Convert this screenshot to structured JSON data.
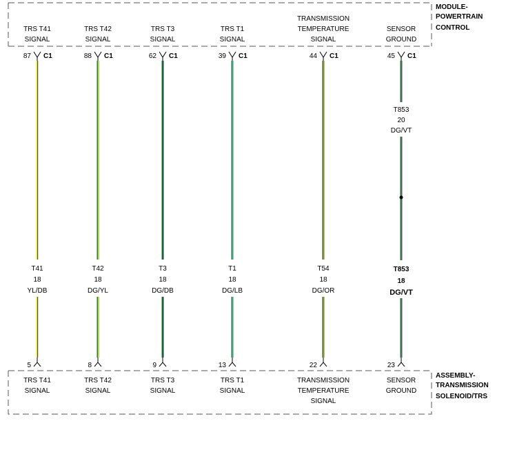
{
  "top_module": {
    "title_lines": [
      "MODULE-",
      "POWERTRAIN",
      "CONTROL"
    ],
    "connector": "C1"
  },
  "bottom_module": {
    "title_lines": [
      "ASSEMBLY-",
      "TRANSMISSION",
      "SOLENOID/TRS"
    ]
  },
  "circuits": [
    {
      "top_label": [
        "TRS T41",
        "SIGNAL"
      ],
      "bottom_label": [
        "TRS T41",
        "SIGNAL"
      ],
      "top_pin": "87",
      "bottom_pin": "5",
      "wire": {
        "circuit": "T41",
        "gauge": "18",
        "color": "YL/DB"
      },
      "colors": {
        "base": "#f2ea1a",
        "stripe": "#2b3a7a"
      }
    },
    {
      "top_label": [
        "TRS T42",
        "SIGNAL"
      ],
      "bottom_label": [
        "TRS T42",
        "SIGNAL"
      ],
      "top_pin": "88",
      "bottom_pin": "8",
      "wire": {
        "circuit": "T42",
        "gauge": "18",
        "color": "DG/YL"
      },
      "colors": {
        "base": "#1f7a2a",
        "stripe": "#f2ea1a"
      }
    },
    {
      "top_label": [
        "TRS T3",
        "SIGNAL"
      ],
      "bottom_label": [
        "TRS T3",
        "SIGNAL"
      ],
      "top_pin": "62",
      "bottom_pin": "9",
      "wire": {
        "circuit": "T3",
        "gauge": "18",
        "color": "DG/DB"
      },
      "colors": {
        "base": "#1f7a2a",
        "stripe": "#1d2f6b"
      }
    },
    {
      "top_label": [
        "TRS T1",
        "SIGNAL"
      ],
      "bottom_label": [
        "TRS T1",
        "SIGNAL"
      ],
      "top_pin": "39",
      "bottom_pin": "13",
      "wire": {
        "circuit": "T1",
        "gauge": "18",
        "color": "DG/LB"
      },
      "colors": {
        "base": "#1f8a2a",
        "stripe": "#5fb0e0"
      }
    },
    {
      "top_label": [
        "TRANSMISSION",
        "TEMPERATURE",
        "SIGNAL"
      ],
      "bottom_label": [
        "TRANSMISSION",
        "TEMPERATURE",
        "SIGNAL"
      ],
      "top_pin": "44",
      "bottom_pin": "22",
      "wire": {
        "circuit": "T54",
        "gauge": "18",
        "color": "DG/OR"
      },
      "colors": {
        "base": "#1f7a2a",
        "stripe": "#e89a2a"
      }
    },
    {
      "top_label": [
        "SENSOR",
        "GROUND"
      ],
      "bottom_label": [
        "SENSOR",
        "GROUND"
      ],
      "top_pin": "45",
      "bottom_pin": "23",
      "wire": {
        "circuit": "T853",
        "gauge": "18",
        "color": "DG/VT"
      },
      "upper_wire": {
        "circuit": "T853",
        "gauge": "20",
        "color": "DG/VT"
      },
      "colors": {
        "base": "#1f7a2a",
        "stripe": "#8a4ab0"
      }
    }
  ]
}
